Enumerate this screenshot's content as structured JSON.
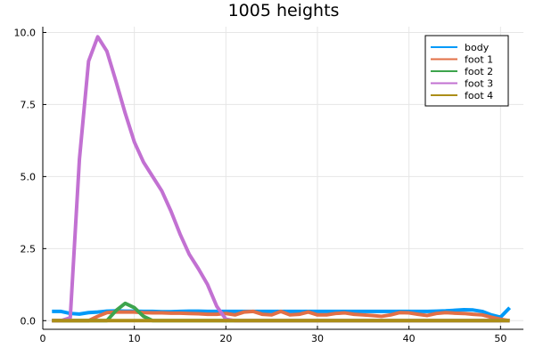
{
  "chart_data": {
    "type": "line",
    "title": "1005 heights",
    "xlabel": "",
    "ylabel": "",
    "xlim": [
      0,
      52.5
    ],
    "ylim": [
      -0.3,
      10.2
    ],
    "xticks": [
      0,
      10,
      20,
      30,
      40,
      50
    ],
    "yticks": [
      0.0,
      2.5,
      5.0,
      7.5,
      10.0
    ],
    "xtick_labels": [
      "0",
      "10",
      "20",
      "30",
      "40",
      "50"
    ],
    "ytick_labels": [
      "0.0",
      "2.5",
      "5.0",
      "7.5",
      "10.0"
    ],
    "grid": true,
    "legend_position": "top-right",
    "series": [
      {
        "name": "body",
        "color": "#009af9",
        "points": [
          [
            1,
            0.32
          ],
          [
            2,
            0.32
          ],
          [
            3,
            0.25
          ],
          [
            4,
            0.23
          ],
          [
            5,
            0.28
          ],
          [
            6,
            0.3
          ],
          [
            7,
            0.33
          ],
          [
            8,
            0.34
          ],
          [
            9,
            0.33
          ],
          [
            10,
            0.33
          ],
          [
            11,
            0.32
          ],
          [
            12,
            0.32
          ],
          [
            13,
            0.31
          ],
          [
            14,
            0.31
          ],
          [
            15,
            0.32
          ],
          [
            16,
            0.33
          ],
          [
            17,
            0.33
          ],
          [
            18,
            0.32
          ],
          [
            19,
            0.32
          ],
          [
            20,
            0.32
          ],
          [
            21,
            0.32
          ],
          [
            22,
            0.32
          ],
          [
            23,
            0.32
          ],
          [
            24,
            0.32
          ],
          [
            25,
            0.32
          ],
          [
            26,
            0.32
          ],
          [
            27,
            0.32
          ],
          [
            28,
            0.32
          ],
          [
            29,
            0.32
          ],
          [
            30,
            0.32
          ],
          [
            31,
            0.32
          ],
          [
            32,
            0.32
          ],
          [
            33,
            0.32
          ],
          [
            34,
            0.32
          ],
          [
            35,
            0.32
          ],
          [
            36,
            0.32
          ],
          [
            37,
            0.32
          ],
          [
            38,
            0.32
          ],
          [
            39,
            0.32
          ],
          [
            40,
            0.32
          ],
          [
            41,
            0.32
          ],
          [
            42,
            0.32
          ],
          [
            43,
            0.33
          ],
          [
            44,
            0.34
          ],
          [
            45,
            0.36
          ],
          [
            46,
            0.38
          ],
          [
            47,
            0.37
          ],
          [
            48,
            0.32
          ],
          [
            49,
            0.2
          ],
          [
            50,
            0.12
          ],
          [
            51,
            0.45
          ]
        ]
      },
      {
        "name": "foot 1",
        "color": "#e26f46",
        "points": [
          [
            1,
            0.0
          ],
          [
            5,
            0.0
          ],
          [
            6,
            0.15
          ],
          [
            7,
            0.28
          ],
          [
            8,
            0.3
          ],
          [
            9,
            0.3
          ],
          [
            10,
            0.3
          ],
          [
            11,
            0.28
          ],
          [
            12,
            0.27
          ],
          [
            13,
            0.27
          ],
          [
            14,
            0.26
          ],
          [
            15,
            0.26
          ],
          [
            16,
            0.25
          ],
          [
            17,
            0.24
          ],
          [
            18,
            0.22
          ],
          [
            19,
            0.22
          ],
          [
            20,
            0.25
          ],
          [
            21,
            0.2
          ],
          [
            22,
            0.3
          ],
          [
            23,
            0.32
          ],
          [
            24,
            0.22
          ],
          [
            25,
            0.2
          ],
          [
            26,
            0.32
          ],
          [
            27,
            0.2
          ],
          [
            28,
            0.22
          ],
          [
            29,
            0.3
          ],
          [
            30,
            0.2
          ],
          [
            31,
            0.2
          ],
          [
            32,
            0.25
          ],
          [
            33,
            0.27
          ],
          [
            34,
            0.22
          ],
          [
            35,
            0.2
          ],
          [
            36,
            0.18
          ],
          [
            37,
            0.15
          ],
          [
            38,
            0.2
          ],
          [
            39,
            0.28
          ],
          [
            40,
            0.27
          ],
          [
            41,
            0.22
          ],
          [
            42,
            0.18
          ],
          [
            43,
            0.25
          ],
          [
            44,
            0.28
          ],
          [
            45,
            0.26
          ],
          [
            46,
            0.25
          ],
          [
            47,
            0.22
          ],
          [
            48,
            0.2
          ],
          [
            49,
            0.12
          ],
          [
            50,
            0.05
          ],
          [
            51,
            0.0
          ]
        ]
      },
      {
        "name": "foot 2",
        "color": "#3da44d",
        "points": [
          [
            1,
            0.0
          ],
          [
            7,
            0.0
          ],
          [
            8,
            0.35
          ],
          [
            9,
            0.6
          ],
          [
            10,
            0.45
          ],
          [
            11,
            0.15
          ],
          [
            12,
            0.0
          ],
          [
            51,
            0.0
          ]
        ]
      },
      {
        "name": "foot 3",
        "color": "#c271d2",
        "points": [
          [
            1,
            0.0
          ],
          [
            2,
            0.0
          ],
          [
            3,
            0.1
          ],
          [
            4,
            5.6
          ],
          [
            5,
            9.0
          ],
          [
            6,
            9.85
          ],
          [
            7,
            9.35
          ],
          [
            8,
            8.3
          ],
          [
            9,
            7.2
          ],
          [
            10,
            6.2
          ],
          [
            11,
            5.5
          ],
          [
            12,
            5.0
          ],
          [
            13,
            4.5
          ],
          [
            14,
            3.8
          ],
          [
            15,
            3.0
          ],
          [
            16,
            2.3
          ],
          [
            17,
            1.8
          ],
          [
            18,
            1.25
          ],
          [
            19,
            0.5
          ],
          [
            20,
            0.05
          ],
          [
            21,
            0.0
          ],
          [
            51,
            0.0
          ]
        ]
      },
      {
        "name": "foot 4",
        "color": "#ac8e18",
        "points": [
          [
            1,
            0.0
          ],
          [
            51,
            0.0
          ]
        ]
      }
    ]
  }
}
